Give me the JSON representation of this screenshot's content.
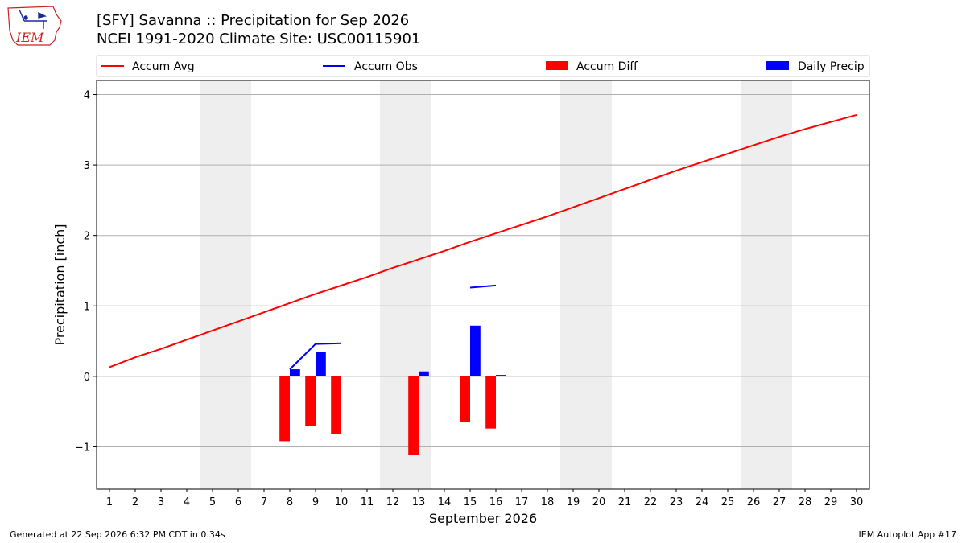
{
  "logo": {
    "text": "IEM"
  },
  "footer": {
    "left": "Generated at 22 Sep 2026 6:32 PM CDT in 0.34s",
    "right": "IEM Autoplot App #17"
  },
  "colors": {
    "avg": "#ff0000",
    "obs": "#0000ff",
    "diff": "#ff0000",
    "daily": "#0000ff",
    "weekend": "#eeeeee",
    "grid": "#b0b0b0"
  },
  "chart_data": {
    "type": "bar",
    "title": [
      "[SFY] Savanna :: Precipitation for Sep 2026",
      "NCEI 1991-2020 Climate Site: USC00115901"
    ],
    "xlabel": "September 2026",
    "ylabel": "Precipitation [inch]",
    "xlim": [
      0.5,
      30.5
    ],
    "ylim": [
      -1.6,
      4.2
    ],
    "yticks": [
      -1,
      0,
      1,
      2,
      3,
      4
    ],
    "ytick_labels": [
      "−1",
      "0",
      "1",
      "2",
      "3",
      "4"
    ],
    "xticks": [
      1,
      2,
      3,
      4,
      5,
      6,
      7,
      8,
      9,
      10,
      11,
      12,
      13,
      14,
      15,
      16,
      17,
      18,
      19,
      20,
      21,
      22,
      23,
      24,
      25,
      26,
      27,
      28,
      29,
      30
    ],
    "grid": "y",
    "weekend_spans": [
      [
        4.5,
        6.5
      ],
      [
        11.5,
        13.5
      ],
      [
        18.5,
        20.5
      ],
      [
        25.5,
        27.5
      ]
    ],
    "legend": {
      "placement": "top",
      "entries": [
        "Accum Avg",
        "Accum Obs",
        "Accum Diff",
        "Daily Precip"
      ]
    },
    "series": [
      {
        "name": "Accum Avg",
        "kind": "line",
        "x": [
          1,
          2,
          3,
          4,
          5,
          6,
          7,
          8,
          9,
          10,
          11,
          12,
          13,
          14,
          15,
          16,
          17,
          18,
          19,
          20,
          21,
          22,
          23,
          24,
          25,
          26,
          27,
          28,
          29,
          30
        ],
        "values": [
          0.13,
          0.27,
          0.39,
          0.52,
          0.65,
          0.78,
          0.91,
          1.04,
          1.17,
          1.29,
          1.41,
          1.54,
          1.66,
          1.78,
          1.91,
          2.03,
          2.15,
          2.27,
          2.4,
          2.53,
          2.66,
          2.79,
          2.92,
          3.04,
          3.16,
          3.28,
          3.4,
          3.51,
          3.61,
          3.71
        ]
      },
      {
        "name": "Accum Obs",
        "kind": "line",
        "segments": [
          {
            "x": [
              8,
              9,
              10
            ],
            "values": [
              0.1,
              0.46,
              0.47
            ]
          },
          {
            "x": [
              15,
              16
            ],
            "values": [
              1.26,
              1.29
            ]
          }
        ]
      },
      {
        "name": "Accum Diff",
        "kind": "bar",
        "x": [
          8,
          9,
          10,
          13,
          15,
          16
        ],
        "values": [
          -0.92,
          -0.7,
          -0.82,
          -1.12,
          -0.65,
          -0.74
        ]
      },
      {
        "name": "Daily Precip",
        "kind": "bar",
        "x": [
          8,
          9,
          13,
          15,
          16
        ],
        "values": [
          0.1,
          0.35,
          0.07,
          0.72,
          0.02
        ]
      }
    ]
  }
}
